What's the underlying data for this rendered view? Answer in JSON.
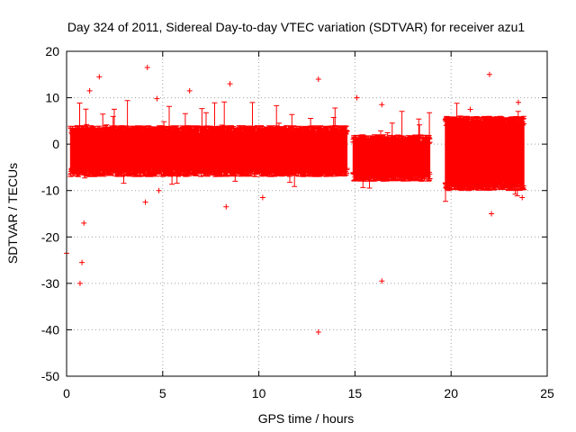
{
  "chart_data": {
    "type": "scatter",
    "title": "Day 324 of 2011, Sidereal Day-to-day VTEC variation (SDTVAR) for receiver azu1",
    "xlabel": "GPS time / hours",
    "ylabel": "SDTVAR / TECUs",
    "xlim": [
      0,
      25
    ],
    "ylim": [
      -50,
      20
    ],
    "xticks": [
      0,
      5,
      10,
      15,
      20,
      25
    ],
    "yticks": [
      -50,
      -40,
      -30,
      -20,
      -10,
      0,
      10,
      20
    ],
    "grid": true,
    "marker": "+",
    "series_color": "#ff0000",
    "series": [
      {
        "name": "SDTVAR",
        "segments": [
          {
            "x_start": 0.2,
            "x_end": 14.6,
            "band_low": -6,
            "band_high": 3
          },
          {
            "x_start": 14.9,
            "x_end": 18.9,
            "band_low": -7,
            "band_high": 1
          },
          {
            "x_start": 19.7,
            "x_end": 23.8,
            "band_low": -9,
            "band_high": 5
          }
        ],
        "outliers": [
          {
            "x": 0.0,
            "y": -23.5
          },
          {
            "x": 0.7,
            "y": -30.0
          },
          {
            "x": 0.8,
            "y": -25.5
          },
          {
            "x": 0.9,
            "y": -17.0
          },
          {
            "x": 1.2,
            "y": 11.5
          },
          {
            "x": 1.7,
            "y": 14.5
          },
          {
            "x": 4.2,
            "y": 16.5
          },
          {
            "x": 4.1,
            "y": -12.5
          },
          {
            "x": 4.7,
            "y": 9.8
          },
          {
            "x": 4.8,
            "y": -10.0
          },
          {
            "x": 6.4,
            "y": 11.5
          },
          {
            "x": 8.5,
            "y": 13.0
          },
          {
            "x": 8.3,
            "y": -13.5
          },
          {
            "x": 10.2,
            "y": -11.5
          },
          {
            "x": 13.1,
            "y": 14.0
          },
          {
            "x": 13.1,
            "y": -40.5
          },
          {
            "x": 15.1,
            "y": 10.0
          },
          {
            "x": 16.4,
            "y": 8.5
          },
          {
            "x": 16.4,
            "y": -29.5
          },
          {
            "x": 21.0,
            "y": 7.5
          },
          {
            "x": 22.0,
            "y": 15.0
          },
          {
            "x": 22.1,
            "y": -15.0
          },
          {
            "x": 23.5,
            "y": 9.0
          },
          {
            "x": 23.7,
            "y": -11.5
          }
        ]
      }
    ]
  }
}
